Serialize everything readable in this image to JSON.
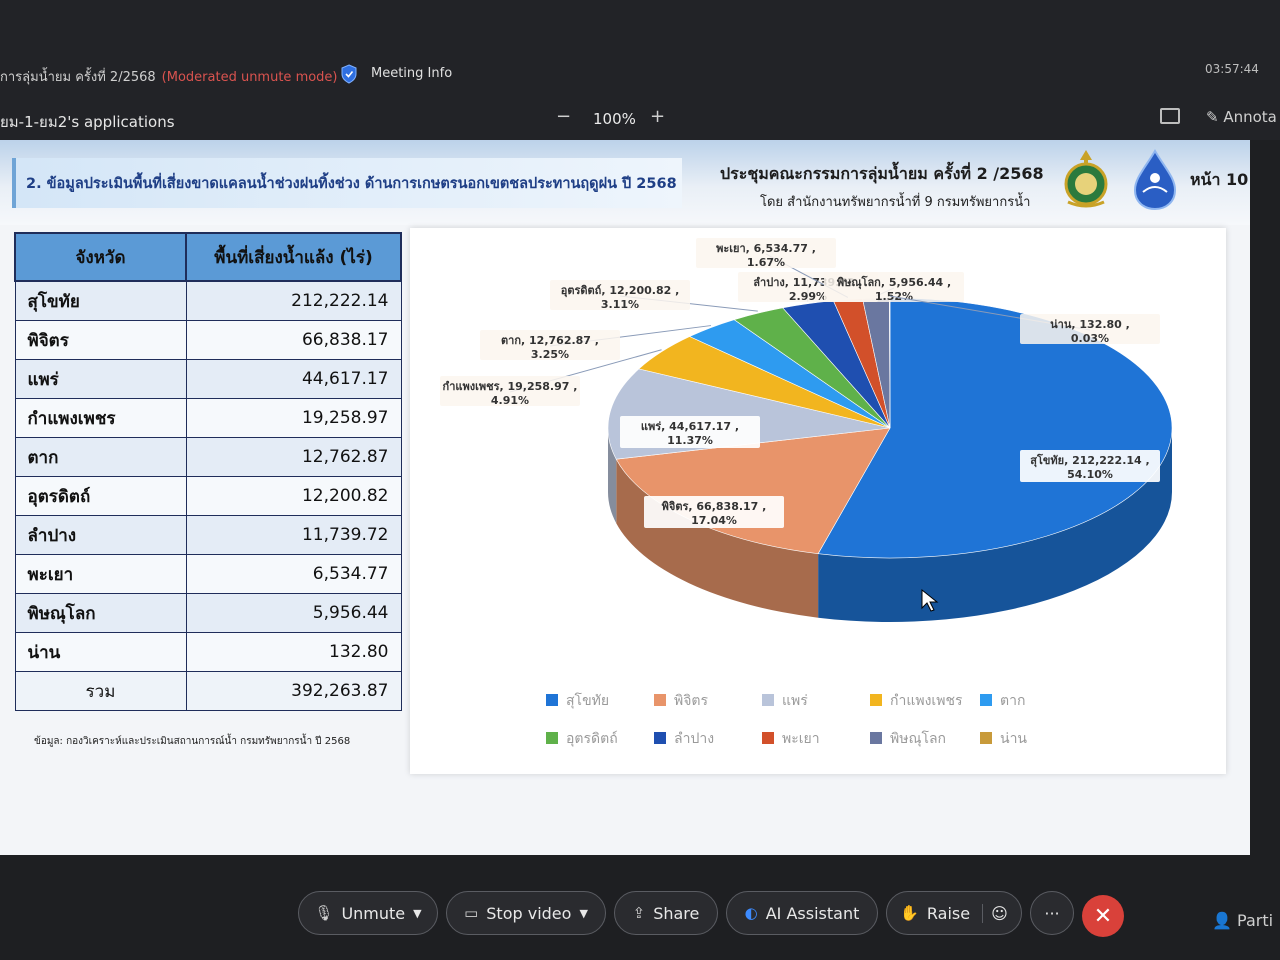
{
  "meeting": {
    "title": "การลุ่มน้ำยม ครั้งที่ 2/2568",
    "mode": "(Moderated unmute mode)",
    "info_label": "Meeting Info",
    "clock": "03:57:44",
    "app_name": "ยม-1-ยม2's applications",
    "zoom_minus": "−",
    "zoom_level": "100%",
    "zoom_plus": "+",
    "annotate_label": "Annota"
  },
  "slide": {
    "banner": "2. ข้อมูลประเมินพื้นที่เสี่ยงขาดแคลนน้ำช่วงฝนทิ้งช่วง ด้านการเกษตรนอกเขตชลประทานฤดูฝน ปี 2568",
    "committee": "ประชุมคณะกรรมการลุ่มน้ำยม ครั้งที่ 2 /2568",
    "byline": "โดย สำนักงานทรัพยากรน้ำที่ 9 กรมทรัพยากรน้ำ",
    "page": "หน้า 10",
    "table": {
      "headers": [
        "จังหวัด",
        "พื้นที่เสี่ยงน้ำแล้ง (ไร่)"
      ],
      "rows": [
        {
          "province": "สุโขทัย",
          "area": "212,222.14"
        },
        {
          "province": "พิจิตร",
          "area": "66,838.17"
        },
        {
          "province": "แพร่",
          "area": "44,617.17"
        },
        {
          "province": "กำแพงเพชร",
          "area": "19,258.97"
        },
        {
          "province": "ตาก",
          "area": "12,762.87"
        },
        {
          "province": "อุตรดิตถ์",
          "area": "12,200.82"
        },
        {
          "province": "ลำปาง",
          "area": "11,739.72"
        },
        {
          "province": "พะเยา",
          "area": "6,534.77"
        },
        {
          "province": "พิษณุโลก",
          "area": "5,956.44"
        },
        {
          "province": "น่าน",
          "area": "132.80"
        }
      ],
      "total_label": "รวม",
      "total_value": "392,263.87"
    },
    "source": "ข้อมูล: กองวิเคราะห์และประเมินสถานการณ์น้ำ กรมทรัพยากรน้ำ ปี 2568"
  },
  "chart_data": {
    "type": "pie",
    "title": "",
    "legend_position": "bottom",
    "slices": [
      {
        "name": "สุโขทัย",
        "value": 212222.14,
        "value_label": "212,222.14",
        "percent": "54.10%",
        "color": "#1f74d6"
      },
      {
        "name": "พิจิตร",
        "value": 66838.17,
        "value_label": "66,838.17",
        "percent": "17.04%",
        "color": "#e8946a"
      },
      {
        "name": "แพร่",
        "value": 44617.17,
        "value_label": "44,617.17",
        "percent": "11.37%",
        "color": "#b9c4da"
      },
      {
        "name": "กำแพงเพชร",
        "value": 19258.97,
        "value_label": "19,258.97",
        "percent": "4.91%",
        "color": "#f2b51f"
      },
      {
        "name": "ตาก",
        "value": 12762.87,
        "value_label": "12,762.87",
        "percent": "3.25%",
        "color": "#2e9bf0"
      },
      {
        "name": "อุตรดิตถ์",
        "value": 12200.82,
        "value_label": "12,200.82",
        "percent": "3.11%",
        "color": "#5fb14a"
      },
      {
        "name": "ลำปาง",
        "value": 11739.72,
        "value_label": "11,739.72",
        "percent": "2.99%",
        "color": "#1f4fb0"
      },
      {
        "name": "พะเยา",
        "value": 6534.77,
        "value_label": "6,534.77",
        "percent": "1.67%",
        "color": "#d2502a"
      },
      {
        "name": "พิษณุโลก",
        "value": 5956.44,
        "value_label": "5,956.44",
        "percent": "1.52%",
        "color": "#6a77a0"
      },
      {
        "name": "น่าน",
        "value": 132.8,
        "value_label": "132.80",
        "percent": "0.03%",
        "color": "#c89a3a"
      }
    ]
  },
  "controls": {
    "unmute": "Unmute",
    "stop_video": "Stop video",
    "share": "Share",
    "ai_assistant": "AI Assistant",
    "raise": "Raise",
    "more": "···",
    "leave": "✕",
    "participants": "Parti"
  },
  "icons": {
    "mic": "mic-off-icon",
    "video": "video-icon",
    "share": "share-icon",
    "ai": "ai-assistant-icon",
    "hand": "raise-hand-icon",
    "emoji": "emoji-icon",
    "people": "participants-icon"
  }
}
